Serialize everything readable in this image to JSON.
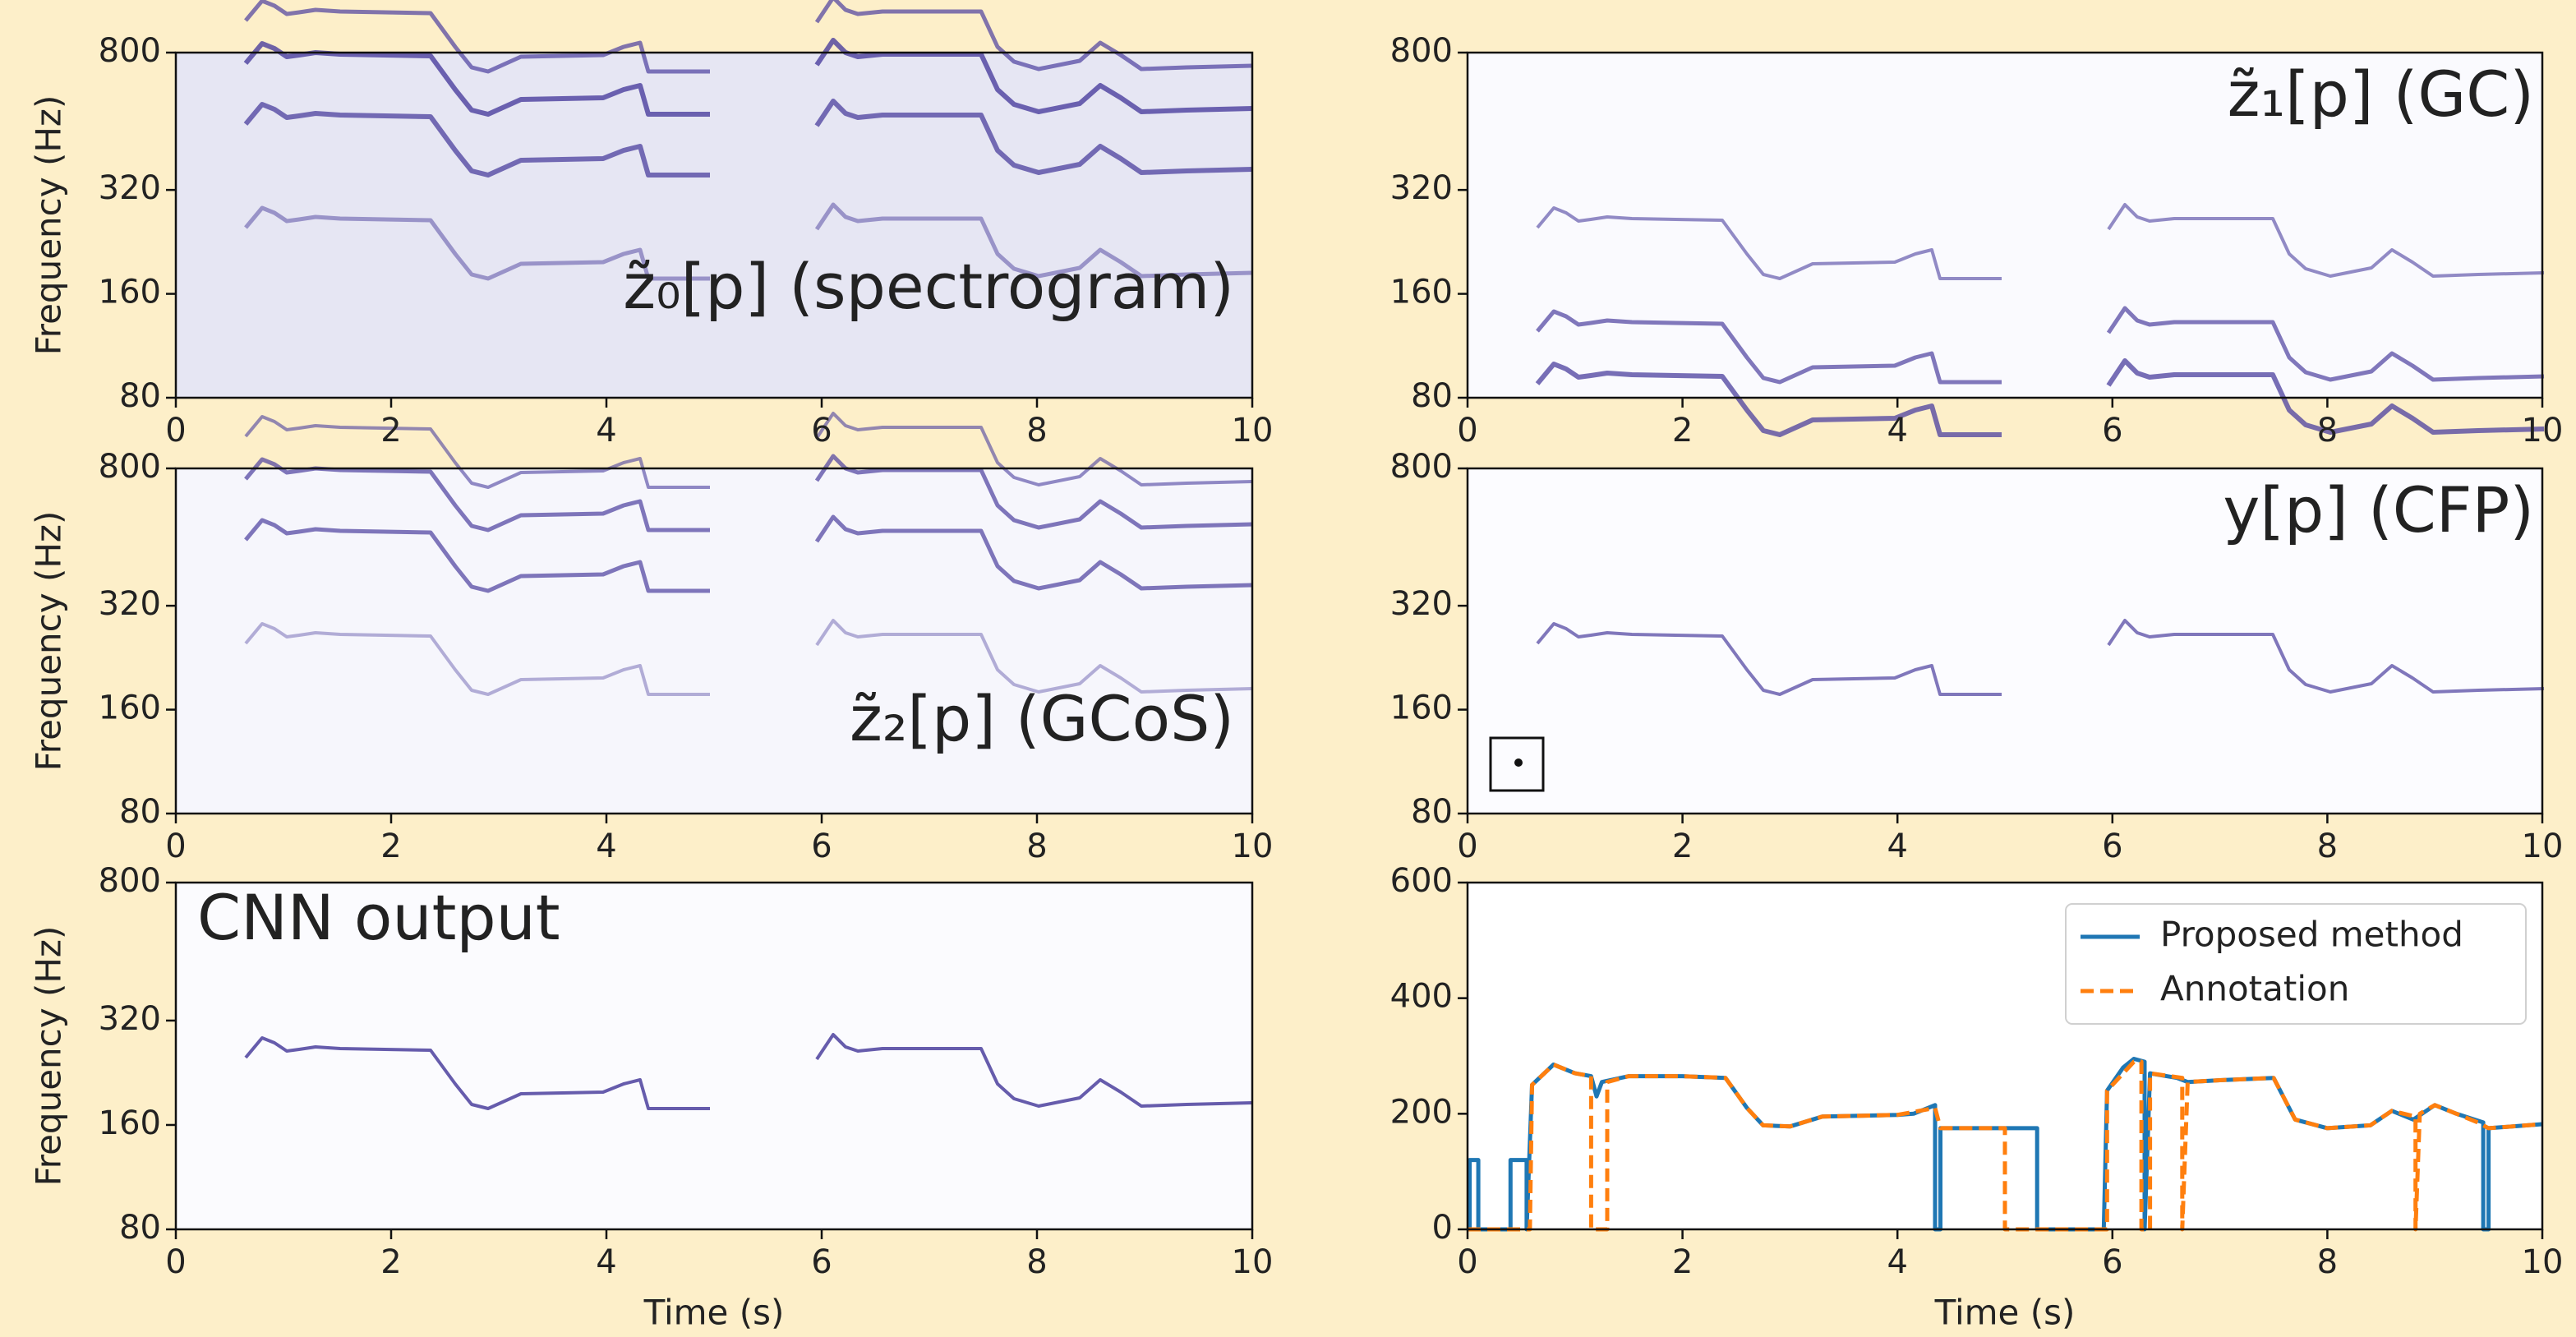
{
  "chart_data": [
    {
      "type": "spectrogram",
      "annotation": "z̃₀[p] (spectrogram)",
      "ylabel": "Frequency (Hz)",
      "xlim": [
        0,
        10
      ],
      "xticks": [
        0,
        2,
        4,
        6,
        8,
        10
      ],
      "ylim": [
        80,
        800
      ],
      "yticks": [
        80,
        160,
        320,
        800
      ],
      "yscale": "log"
    },
    {
      "type": "spectrogram",
      "annotation": "z̃₁[p] (GC)",
      "xlim": [
        0,
        10
      ],
      "xticks": [
        0,
        2,
        4,
        6,
        8,
        10
      ],
      "ylim": [
        80,
        800
      ],
      "yticks": [
        80,
        160,
        320,
        800
      ],
      "yscale": "log"
    },
    {
      "type": "spectrogram",
      "annotation": "z̃₂[p] (GCoS)",
      "ylabel": "Frequency (Hz)",
      "xlim": [
        0,
        10
      ],
      "xticks": [
        0,
        2,
        4,
        6,
        8,
        10
      ],
      "ylim": [
        80,
        800
      ],
      "yticks": [
        80,
        160,
        320,
        800
      ],
      "yscale": "log"
    },
    {
      "type": "spectrogram",
      "annotation": "y[p] (CFP)",
      "xlim": [
        0,
        10
      ],
      "xticks": [
        0,
        2,
        4,
        6,
        8,
        10
      ],
      "ylim": [
        80,
        800
      ],
      "yticks": [
        80,
        160,
        320,
        800
      ],
      "yscale": "log"
    },
    {
      "type": "spectrogram",
      "annotation": "CNN output",
      "ylabel": "Frequency (Hz)",
      "xlabel": "Time (s)",
      "xlim": [
        0,
        10
      ],
      "xticks": [
        0,
        2,
        4,
        6,
        8,
        10
      ],
      "ylim": [
        80,
        800
      ],
      "yticks": [
        80,
        160,
        320,
        800
      ],
      "yscale": "log"
    },
    {
      "type": "line",
      "xlabel": "Time (s)",
      "legend": "upper right",
      "xlim": [
        0,
        10
      ],
      "xticks": [
        0,
        2,
        4,
        6,
        8,
        10
      ],
      "ylim": [
        0,
        600
      ],
      "yticks": [
        0,
        200,
        400,
        600
      ],
      "series": [
        {
          "name": "Proposed method",
          "color": "#1f77b4",
          "linestyle": "solid",
          "x": [
            0,
            0.02,
            0.02,
            0.1,
            0.1,
            0.4,
            0.4,
            0.55,
            0.55,
            0.6,
            0.8,
            1.0,
            1.15,
            1.2,
            1.25,
            1.5,
            2.0,
            2.4,
            2.6,
            2.75,
            3.0,
            3.3,
            4.0,
            4.15,
            4.35,
            4.35,
            4.4,
            4.4,
            5.3,
            5.3,
            5.92,
            5.95,
            6.1,
            6.2,
            6.3,
            6.3,
            6.35,
            6.6,
            6.7,
            7.0,
            7.5,
            7.7,
            8.0,
            8.4,
            8.6,
            8.8,
            9.0,
            9.2,
            9.45,
            9.45,
            9.5,
            9.5,
            10
          ],
          "values": [
            0,
            0,
            120,
            120,
            0,
            0,
            120,
            120,
            0,
            250,
            285,
            270,
            265,
            230,
            255,
            265,
            265,
            262,
            210,
            180,
            178,
            195,
            198,
            200,
            215,
            0,
            0,
            175,
            175,
            0,
            0,
            240,
            280,
            295,
            290,
            0,
            270,
            262,
            255,
            258,
            262,
            190,
            175,
            180,
            205,
            190,
            215,
            200,
            185,
            0,
            0,
            175,
            182
          ]
        },
        {
          "name": "Annotation",
          "color": "#ff7f0e",
          "linestyle": "dashed",
          "x": [
            0,
            0.58,
            0.6,
            0.8,
            1.0,
            1.15,
            1.15,
            1.3,
            1.3,
            1.5,
            2.0,
            2.4,
            2.6,
            2.75,
            3.0,
            3.3,
            4.0,
            4.35,
            4.4,
            5.0,
            5.0,
            5.95,
            5.95,
            6.2,
            6.27,
            6.27,
            6.35,
            6.35,
            6.65,
            6.65,
            6.7,
            7.0,
            7.5,
            7.7,
            8.0,
            8.4,
            8.6,
            8.82,
            8.82,
            8.86,
            9.0,
            9.2,
            9.4,
            9.5,
            10
          ],
          "values": [
            0,
            0,
            250,
            285,
            270,
            265,
            0,
            0,
            255,
            265,
            265,
            262,
            210,
            180,
            178,
            195,
            198,
            210,
            175,
            175,
            0,
            0,
            240,
            290,
            290,
            0,
            0,
            270,
            262,
            0,
            255,
            258,
            262,
            190,
            175,
            180,
            205,
            195,
            0,
            200,
            215,
            200,
            185,
            175,
            182
          ]
        }
      ]
    }
  ]
}
